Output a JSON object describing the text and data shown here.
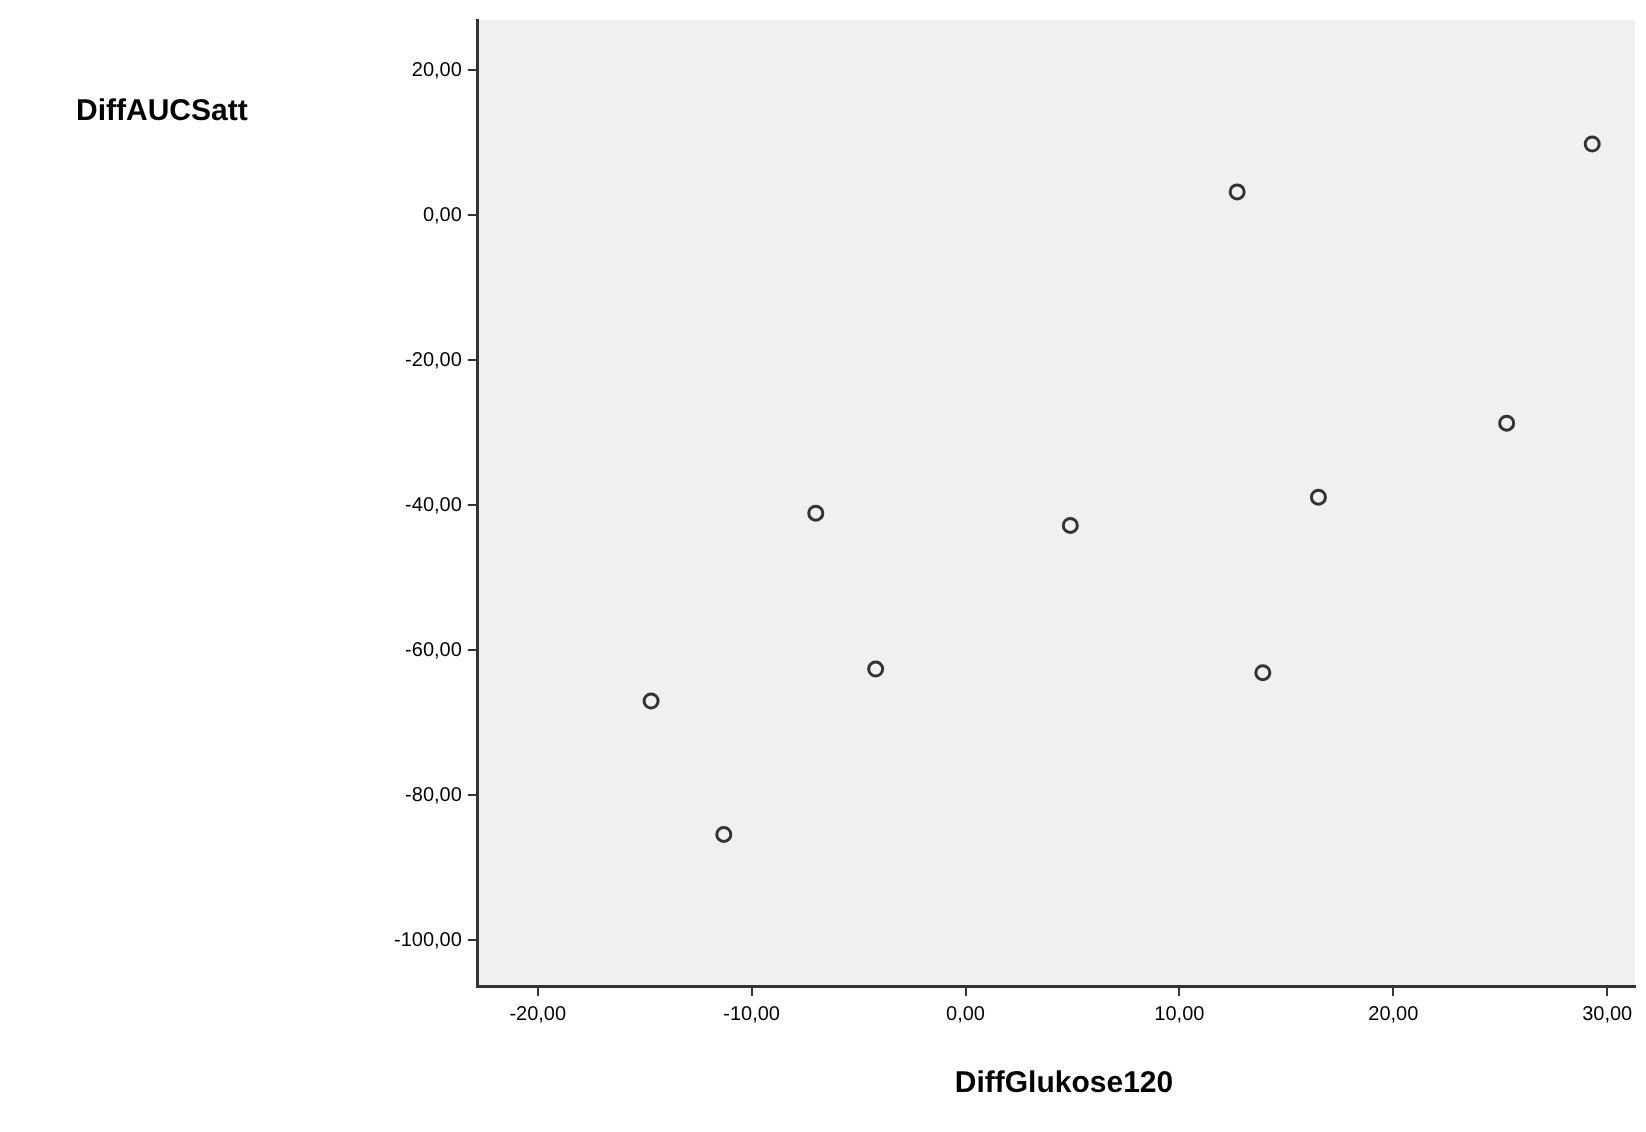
{
  "chart_data": {
    "type": "scatter",
    "xlabel": "DiffGlukose120",
    "ylabel": "DiffAUCSatt",
    "x": [
      -14.7,
      -11.3,
      -7.0,
      -4.2,
      4.9,
      12.7,
      13.9,
      16.5,
      25.3,
      29.3
    ],
    "series": [
      {
        "color": "#333333",
        "values": [
          -67.0,
          -85.4,
          -41.1,
          -62.6,
          -42.8,
          3.2,
          -63.1,
          -38.9,
          -28.7,
          9.8
        ]
      }
    ],
    "xlim": [
      -22.8,
      31.3
    ],
    "ylim": [
      -106.3,
      26.9
    ],
    "xticks": [
      {
        "value": -20,
        "label": "-20,00"
      },
      {
        "value": -10,
        "label": "-10,00"
      },
      {
        "value": 0,
        "label": "0,00"
      },
      {
        "value": 10,
        "label": "10,00"
      },
      {
        "value": 20,
        "label": "20,00"
      },
      {
        "value": 30,
        "label": "30,00"
      }
    ],
    "yticks": [
      {
        "value": -100,
        "label": "-100,00"
      },
      {
        "value": -80,
        "label": "-80,00"
      },
      {
        "value": -60,
        "label": "-60,00"
      },
      {
        "value": -40,
        "label": "-40,00"
      },
      {
        "value": -20,
        "label": "-20,00"
      },
      {
        "value": 0,
        "label": "0,00"
      },
      {
        "value": 20,
        "label": "20,00"
      }
    ],
    "grid": false,
    "legend": false,
    "marker": "circle"
  }
}
